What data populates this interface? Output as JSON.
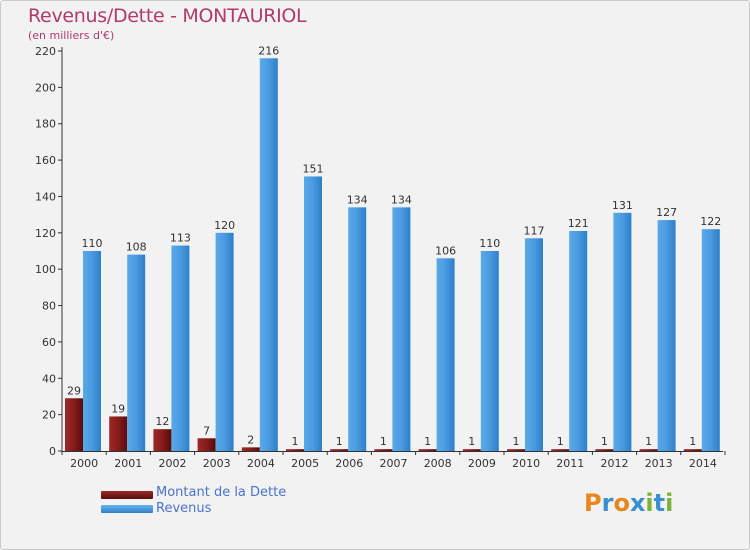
{
  "title": "Revenus/Dette - MONTAURIOL",
  "subtitle": "(en milliers d'€)",
  "legend": [
    {
      "label": "Montant de la Dette",
      "color": "#7a1515"
    },
    {
      "label": "Revenus",
      "color": "#4a9be0"
    }
  ],
  "logo": "Proxiti",
  "chart_data": {
    "type": "bar",
    "title": "Revenus/Dette - MONTAURIOL",
    "ylabel": "(en milliers d'€)",
    "xlabel": "",
    "ylim": [
      0,
      220
    ],
    "yticks": [
      0,
      20,
      40,
      60,
      80,
      100,
      120,
      140,
      160,
      180,
      200,
      220
    ],
    "grid": false,
    "categories": [
      "2000",
      "2001",
      "2002",
      "2003",
      "2004",
      "2005",
      "2006",
      "2007",
      "2008",
      "2009",
      "2010",
      "2011",
      "2012",
      "2013",
      "2014"
    ],
    "series": [
      {
        "name": "Montant de la Dette",
        "color": "#7a1515",
        "values": [
          29,
          19,
          12,
          7,
          2,
          1,
          1,
          1,
          1,
          1,
          1,
          1,
          1,
          1,
          1
        ]
      },
      {
        "name": "Revenus",
        "color": "#4a9be0",
        "values": [
          110,
          108,
          113,
          120,
          216,
          151,
          134,
          134,
          106,
          110,
          117,
          121,
          131,
          127,
          122
        ]
      }
    ]
  }
}
